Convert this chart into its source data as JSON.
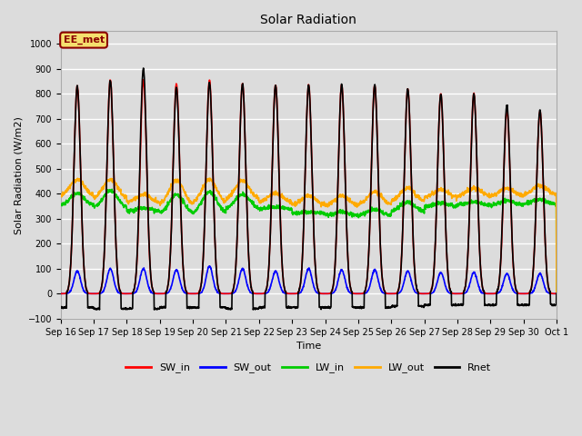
{
  "title": "Solar Radiation",
  "ylabel": "Solar Radiation (W/m2)",
  "xlabel": "Time",
  "ylim": [
    -100,
    1050
  ],
  "background_color": "#dcdcdc",
  "plot_bg_color": "#dcdcdc",
  "grid_color": "white",
  "annotation_text": "EE_met",
  "annotation_box_color": "#f5e06e",
  "annotation_box_edge": "#8b0000",
  "series": {
    "SW_in": {
      "color": "#ff0000",
      "lw": 1.2
    },
    "SW_out": {
      "color": "#0000ff",
      "lw": 1.2
    },
    "LW_in": {
      "color": "#00cc00",
      "lw": 1.2
    },
    "LW_out": {
      "color": "#ffaa00",
      "lw": 1.2
    },
    "Rnet": {
      "color": "#000000",
      "lw": 1.2
    }
  },
  "xtick_labels": [
    "Sep 16",
    "Sep 17",
    "Sep 18",
    "Sep 19",
    "Sep 20",
    "Sep 21",
    "Sep 22",
    "Sep 23",
    "Sep 24",
    "Sep 25",
    "Sep 26",
    "Sep 27",
    "Sep 28",
    "Sep 29",
    "Sep 30",
    "Oct 1"
  ],
  "num_days": 15,
  "pts_per_day": 144,
  "SW_in_peak": [
    830,
    855,
    855,
    840,
    855,
    840,
    835,
    835,
    835,
    835,
    820,
    800,
    800,
    735,
    730
  ],
  "SW_out_peak": [
    90,
    100,
    100,
    95,
    110,
    100,
    90,
    100,
    95,
    95,
    90,
    85,
    85,
    80,
    80
  ],
  "LW_in_base": [
    350,
    340,
    330,
    318,
    318,
    338,
    338,
    322,
    312,
    312,
    328,
    348,
    353,
    353,
    358
  ],
  "LW_in_peak": [
    402,
    412,
    342,
    397,
    407,
    397,
    347,
    327,
    327,
    337,
    367,
    362,
    367,
    372,
    377
  ],
  "LW_out_base": [
    388,
    378,
    363,
    353,
    358,
    373,
    363,
    353,
    348,
    353,
    368,
    383,
    388,
    388,
    393
  ],
  "LW_out_peak": [
    457,
    457,
    397,
    452,
    457,
    452,
    402,
    392,
    392,
    407,
    422,
    417,
    422,
    422,
    432
  ],
  "Rnet_peak": [
    830,
    855,
    900,
    825,
    845,
    840,
    835,
    835,
    835,
    835,
    820,
    800,
    800,
    755,
    735
  ],
  "Rnet_night": [
    -55,
    -60,
    -60,
    -55,
    -55,
    -60,
    -55,
    -55,
    -55,
    -55,
    -50,
    -45,
    -45,
    -45,
    -45
  ]
}
